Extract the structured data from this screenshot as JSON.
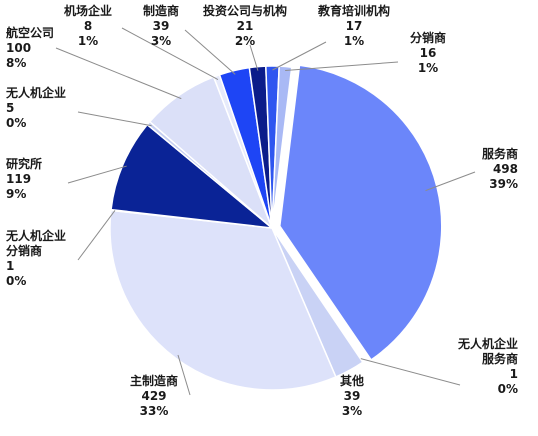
{
  "chart_data": {
    "type": "pie",
    "title": "",
    "slices": [
      {
        "name": "服务商",
        "value": 498,
        "percent": "39%",
        "color": "#6b86fa"
      },
      {
        "name": "无人机企业服务商",
        "value": 1,
        "percent": "0%",
        "color": "#5a78f2"
      },
      {
        "name": "其他",
        "value": 39,
        "percent": "3%",
        "color": "#c9d2f5"
      },
      {
        "name": "主制造商",
        "value": 429,
        "percent": "33%",
        "color": "#dde2fa"
      },
      {
        "name": "无人机企业分销商",
        "value": 1,
        "percent": "0%",
        "color": "#d3d9f6"
      },
      {
        "name": "研究所",
        "value": 119,
        "percent": "9%",
        "color": "#0a2396"
      },
      {
        "name": "无人机企业",
        "value": 5,
        "percent": "0%",
        "color": "#c6cff2"
      },
      {
        "name": "航空公司",
        "value": 100,
        "percent": "8%",
        "color": "#dbe0f8"
      },
      {
        "name": "机场企业",
        "value": 8,
        "percent": "1%",
        "color": "#e6eafb"
      },
      {
        "name": "制造商",
        "value": 39,
        "percent": "3%",
        "color": "#1e45f5"
      },
      {
        "name": "投资公司与机构",
        "value": 21,
        "percent": "2%",
        "color": "#0b1c8a"
      },
      {
        "name": "教育培训机构",
        "value": 17,
        "percent": "1%",
        "color": "#2f56f0"
      },
      {
        "name": "分销商",
        "value": 16,
        "percent": "1%",
        "color": "#a9b9f5"
      }
    ]
  }
}
